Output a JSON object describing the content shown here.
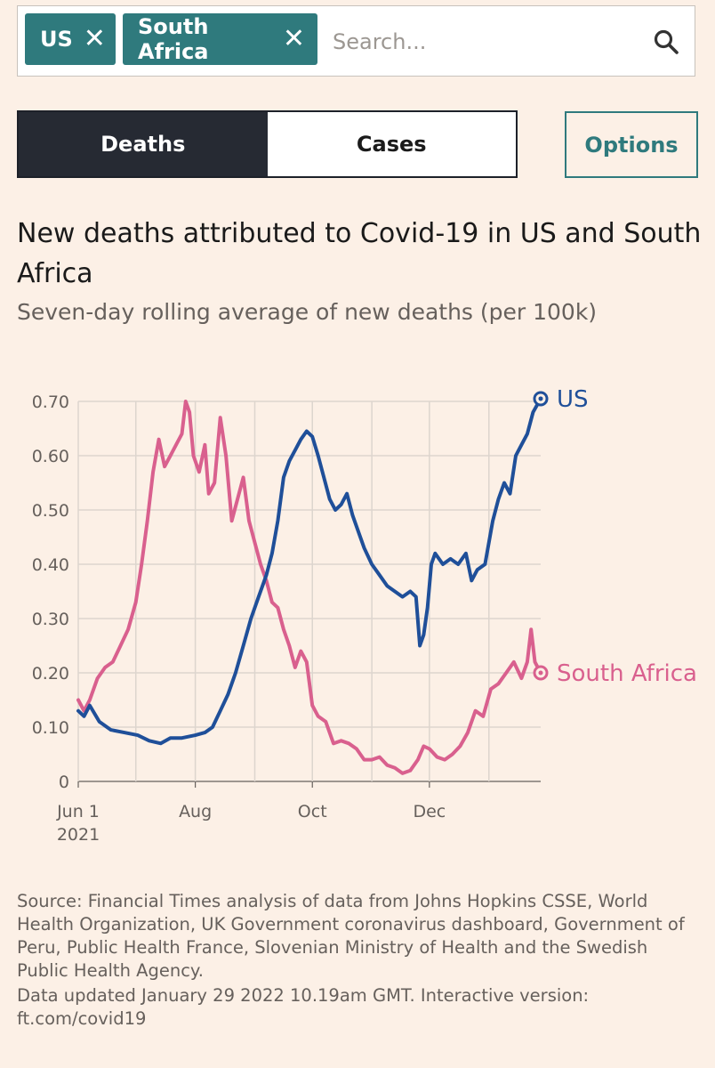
{
  "search": {
    "chips": [
      {
        "label": "US",
        "remove": "✕"
      },
      {
        "label": "South Africa",
        "remove": "✕"
      }
    ],
    "placeholder": "Search...",
    "icon": "search-icon"
  },
  "toggle": {
    "deaths_label": "Deaths",
    "cases_label": "Cases",
    "active": "Deaths"
  },
  "options_label": "Options",
  "chart_data": {
    "type": "line",
    "title": "New deaths attributed to Covid-19 in US and South Africa",
    "subtitle": "Seven-day rolling average of new deaths (per 100k)",
    "xlabel": "",
    "ylabel": "",
    "ylim": [
      0,
      0.7
    ],
    "y_ticks": [
      {
        "value": 0.7,
        "label": "0.70"
      },
      {
        "value": 0.6,
        "label": "0.60"
      },
      {
        "value": 0.5,
        "label": "0.50"
      },
      {
        "value": 0.4,
        "label": "0.40"
      },
      {
        "value": 0.3,
        "label": "0.30"
      },
      {
        "value": 0.2,
        "label": "0.20"
      },
      {
        "value": 0.1,
        "label": "0.10"
      },
      {
        "value": 0,
        "label": "0"
      }
    ],
    "x_range": [
      "2021-06-01",
      "2022-01-28"
    ],
    "x_ticks": [
      {
        "date": "2021-06-01",
        "label": "Jun 1",
        "sublabel": "2021"
      },
      {
        "date": "2021-08-01",
        "label": "Aug",
        "sublabel": ""
      },
      {
        "date": "2021-10-01",
        "label": "Oct",
        "sublabel": ""
      },
      {
        "date": "2021-12-01",
        "label": "Dec",
        "sublabel": ""
      }
    ],
    "grid_dates": [
      "2021-06-01",
      "2021-07-01",
      "2021-08-01",
      "2021-09-01",
      "2021-10-01",
      "2021-11-01",
      "2021-12-01",
      "2022-01-01"
    ],
    "grid": true,
    "series": [
      {
        "name": "US",
        "color": "#1f4f99",
        "points": [
          [
            "2021-06-01",
            0.13
          ],
          [
            "2021-06-04",
            0.12
          ],
          [
            "2021-06-07",
            0.14
          ],
          [
            "2021-06-12",
            0.11
          ],
          [
            "2021-06-18",
            0.095
          ],
          [
            "2021-06-25",
            0.09
          ],
          [
            "2021-07-02",
            0.085
          ],
          [
            "2021-07-08",
            0.075
          ],
          [
            "2021-07-14",
            0.07
          ],
          [
            "2021-07-19",
            0.08
          ],
          [
            "2021-07-25",
            0.08
          ],
          [
            "2021-08-01",
            0.085
          ],
          [
            "2021-08-06",
            0.09
          ],
          [
            "2021-08-10",
            0.1
          ],
          [
            "2021-08-14",
            0.13
          ],
          [
            "2021-08-18",
            0.16
          ],
          [
            "2021-08-22",
            0.2
          ],
          [
            "2021-08-26",
            0.25
          ],
          [
            "2021-08-30",
            0.3
          ],
          [
            "2021-09-03",
            0.34
          ],
          [
            "2021-09-07",
            0.38
          ],
          [
            "2021-09-10",
            0.42
          ],
          [
            "2021-09-13",
            0.48
          ],
          [
            "2021-09-16",
            0.56
          ],
          [
            "2021-09-19",
            0.59
          ],
          [
            "2021-09-22",
            0.61
          ],
          [
            "2021-09-25",
            0.63
          ],
          [
            "2021-09-28",
            0.645
          ],
          [
            "2021-10-01",
            0.635
          ],
          [
            "2021-10-04",
            0.6
          ],
          [
            "2021-10-07",
            0.56
          ],
          [
            "2021-10-10",
            0.52
          ],
          [
            "2021-10-13",
            0.5
          ],
          [
            "2021-10-16",
            0.51
          ],
          [
            "2021-10-19",
            0.53
          ],
          [
            "2021-10-22",
            0.49
          ],
          [
            "2021-10-25",
            0.46
          ],
          [
            "2021-10-28",
            0.43
          ],
          [
            "2021-11-01",
            0.4
          ],
          [
            "2021-11-05",
            0.38
          ],
          [
            "2021-11-09",
            0.36
          ],
          [
            "2021-11-13",
            0.35
          ],
          [
            "2021-11-17",
            0.34
          ],
          [
            "2021-11-21",
            0.35
          ],
          [
            "2021-11-24",
            0.34
          ],
          [
            "2021-11-26",
            0.25
          ],
          [
            "2021-11-28",
            0.27
          ],
          [
            "2021-11-30",
            0.32
          ],
          [
            "2021-12-02",
            0.4
          ],
          [
            "2021-12-04",
            0.42
          ],
          [
            "2021-12-08",
            0.4
          ],
          [
            "2021-12-12",
            0.41
          ],
          [
            "2021-12-16",
            0.4
          ],
          [
            "2021-12-20",
            0.42
          ],
          [
            "2021-12-23",
            0.37
          ],
          [
            "2021-12-26",
            0.39
          ],
          [
            "2021-12-30",
            0.4
          ],
          [
            "2022-01-03",
            0.48
          ],
          [
            "2022-01-06",
            0.52
          ],
          [
            "2022-01-09",
            0.55
          ],
          [
            "2022-01-12",
            0.53
          ],
          [
            "2022-01-15",
            0.6
          ],
          [
            "2022-01-18",
            0.62
          ],
          [
            "2022-01-21",
            0.64
          ],
          [
            "2022-01-24",
            0.68
          ],
          [
            "2022-01-28",
            0.705
          ]
        ]
      },
      {
        "name": "South Africa",
        "color": "#d9608e",
        "points": [
          [
            "2021-06-01",
            0.15
          ],
          [
            "2021-06-04",
            0.13
          ],
          [
            "2021-06-07",
            0.15
          ],
          [
            "2021-06-11",
            0.19
          ],
          [
            "2021-06-15",
            0.21
          ],
          [
            "2021-06-19",
            0.22
          ],
          [
            "2021-06-23",
            0.25
          ],
          [
            "2021-06-27",
            0.28
          ],
          [
            "2021-07-01",
            0.33
          ],
          [
            "2021-07-04",
            0.4
          ],
          [
            "2021-07-07",
            0.48
          ],
          [
            "2021-07-10",
            0.57
          ],
          [
            "2021-07-13",
            0.63
          ],
          [
            "2021-07-16",
            0.58
          ],
          [
            "2021-07-19",
            0.6
          ],
          [
            "2021-07-22",
            0.62
          ],
          [
            "2021-07-25",
            0.64
          ],
          [
            "2021-07-27",
            0.7
          ],
          [
            "2021-07-29",
            0.68
          ],
          [
            "2021-07-31",
            0.6
          ],
          [
            "2021-08-03",
            0.57
          ],
          [
            "2021-08-06",
            0.62
          ],
          [
            "2021-08-08",
            0.53
          ],
          [
            "2021-08-11",
            0.55
          ],
          [
            "2021-08-14",
            0.67
          ],
          [
            "2021-08-17",
            0.6
          ],
          [
            "2021-08-20",
            0.48
          ],
          [
            "2021-08-23",
            0.52
          ],
          [
            "2021-08-26",
            0.56
          ],
          [
            "2021-08-29",
            0.48
          ],
          [
            "2021-09-01",
            0.44
          ],
          [
            "2021-09-04",
            0.4
          ],
          [
            "2021-09-07",
            0.37
          ],
          [
            "2021-09-10",
            0.33
          ],
          [
            "2021-09-13",
            0.32
          ],
          [
            "2021-09-16",
            0.28
          ],
          [
            "2021-09-19",
            0.25
          ],
          [
            "2021-09-22",
            0.21
          ],
          [
            "2021-09-25",
            0.24
          ],
          [
            "2021-09-28",
            0.22
          ],
          [
            "2021-10-01",
            0.14
          ],
          [
            "2021-10-04",
            0.12
          ],
          [
            "2021-10-08",
            0.11
          ],
          [
            "2021-10-12",
            0.07
          ],
          [
            "2021-10-16",
            0.075
          ],
          [
            "2021-10-20",
            0.07
          ],
          [
            "2021-10-24",
            0.06
          ],
          [
            "2021-10-28",
            0.04
          ],
          [
            "2021-11-01",
            0.04
          ],
          [
            "2021-11-05",
            0.045
          ],
          [
            "2021-11-09",
            0.03
          ],
          [
            "2021-11-13",
            0.025
          ],
          [
            "2021-11-17",
            0.015
          ],
          [
            "2021-11-21",
            0.02
          ],
          [
            "2021-11-25",
            0.04
          ],
          [
            "2021-11-28",
            0.065
          ],
          [
            "2021-12-01",
            0.06
          ],
          [
            "2021-12-05",
            0.045
          ],
          [
            "2021-12-09",
            0.04
          ],
          [
            "2021-12-13",
            0.05
          ],
          [
            "2021-12-17",
            0.065
          ],
          [
            "2021-12-21",
            0.09
          ],
          [
            "2021-12-25",
            0.13
          ],
          [
            "2021-12-29",
            0.12
          ],
          [
            "2022-01-02",
            0.17
          ],
          [
            "2022-01-06",
            0.18
          ],
          [
            "2022-01-10",
            0.2
          ],
          [
            "2022-01-14",
            0.22
          ],
          [
            "2022-01-18",
            0.19
          ],
          [
            "2022-01-21",
            0.22
          ],
          [
            "2022-01-23",
            0.28
          ],
          [
            "2022-01-25",
            0.22
          ],
          [
            "2022-01-28",
            0.2
          ]
        ]
      }
    ]
  },
  "source": "Source: Financial Times analysis of data from Johns Hopkins CSSE, World Health Organization, UK Government coronavirus dashboard, Government of Peru, Public Health France, Slovenian Ministry of Health and the Swedish Public Health Agency.",
  "updated": "Data updated January 29 2022 10.19am GMT. Interactive version: ft.com/covid19",
  "colors": {
    "background": "#fcf0e6",
    "teal": "#2f7a7d",
    "dark": "#262a33",
    "us": "#1f4f99",
    "south_africa": "#d9608e"
  }
}
